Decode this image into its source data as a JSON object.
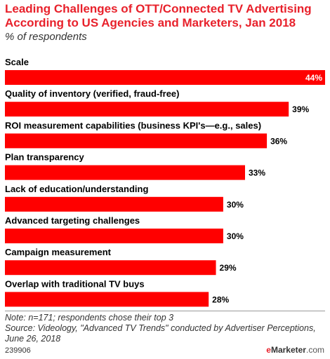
{
  "chart_data": {
    "type": "bar",
    "orientation": "horizontal",
    "title": "Leading Challenges of OTT/Connected TV Advertising According to US Agencies and Marketers, Jan 2018",
    "subtitle": "% of respondents",
    "categories": [
      "Scale",
      "Quality of inventory (verified, fraud-free)",
      "ROI measurement capabilities (business KPI's—e.g., sales)",
      "Plan transparency",
      "Lack of education/understanding",
      "Advanced targeting challenges",
      "Campaign measurement",
      "Overlap with traditional TV buys"
    ],
    "values": [
      44,
      39,
      36,
      33,
      30,
      30,
      29,
      28
    ],
    "value_labels": [
      "44%",
      "39%",
      "36%",
      "33%",
      "30%",
      "30%",
      "29%",
      "28%"
    ],
    "xlim": [
      0,
      44
    ],
    "grid": false,
    "bar_color": "#ff0000"
  },
  "footer": {
    "note": "Note: n=171; respondents chose their top 3",
    "source": "Source: Videology, \"Advanced TV Trends\" conducted by Advertiser Perceptions, June 26, 2018",
    "chart_id": "239906",
    "brand_e": "e",
    "brand_name": "Marketer",
    "brand_domain": ".com"
  }
}
